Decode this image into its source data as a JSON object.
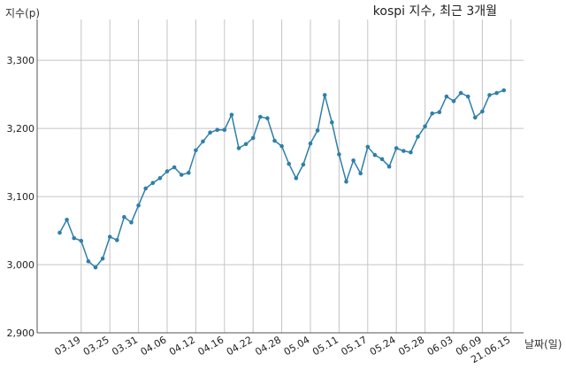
{
  "chart_data": {
    "type": "line",
    "title": "kospi 지수, 최근 3개월",
    "xlabel": "날짜(일)",
    "ylabel": "지수(p)",
    "ylim": [
      2900,
      3360
    ],
    "yticks": [
      2900,
      3000,
      3100,
      3200,
      3300
    ],
    "ytick_labels": [
      "2,900",
      "3,000",
      "3,100",
      "3,200",
      "3,300"
    ],
    "xtick_labels": [
      "03.19",
      "03.25",
      "03.31",
      "04.06",
      "04.12",
      "04.16",
      "04.22",
      "04.28",
      "05.04",
      "05.11",
      "05.17",
      "05.24",
      "05.28",
      "06.03",
      "06.09",
      "21.06.15"
    ],
    "xtick_index": [
      3,
      7,
      11,
      15,
      19,
      23,
      27,
      31,
      35,
      39,
      43,
      47,
      51,
      55,
      59,
      63
    ],
    "grid": true,
    "legend": false,
    "line_color": "#2e7fa8",
    "series": [
      {
        "values": [
          3047,
          3066,
          3039,
          3035,
          3005,
          2996,
          3009,
          3041,
          3036,
          3070,
          3062,
          3087,
          3112,
          3120,
          3127,
          3137,
          3143,
          3132,
          3135,
          3168,
          3181,
          3194,
          3198,
          3198,
          3220,
          3171,
          3177,
          3186,
          3217,
          3215,
          3182,
          3174,
          3148,
          3127,
          3147,
          3178,
          3197,
          3249,
          3209,
          3162,
          3122,
          3153,
          3134,
          3173,
          3161,
          3155,
          3144,
          3171,
          3167,
          3165,
          3188,
          3203,
          3222,
          3224,
          3247,
          3240,
          3252,
          3247,
          3216,
          3225,
          3249,
          3252,
          3256
        ]
      }
    ]
  }
}
